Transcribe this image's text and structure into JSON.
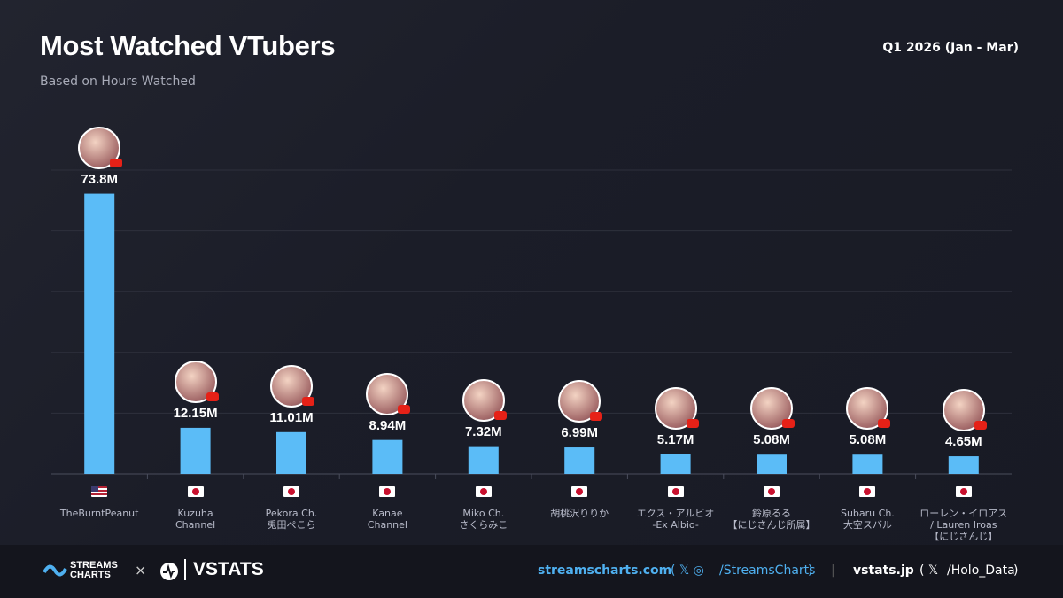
{
  "chart_data": {
    "type": "bar",
    "title": "Most Watched VTubers",
    "subtitle": "Based on Hours Watched",
    "period": "Q1 2026 (Jan - Mar)",
    "categories": [
      "TheBurntPeanut",
      "Kuzuha\nChannel",
      "Pekora Ch.\n兎田ぺこら",
      "Kanae\nChannel",
      "Miko Ch.\nさくらみこ",
      "胡桃沢りりか",
      "エクス・アルビオ\n-Ex Albio-",
      "鈴原るる\n【にじさんじ所属】",
      "Subaru Ch.\n大空スバル",
      "ローレン・イロアス\n/ Lauren Iroas\n【にじさんじ】"
    ],
    "values": [
      73.8,
      12.15,
      11.01,
      8.94,
      7.32,
      6.99,
      5.17,
      5.08,
      5.08,
      4.65
    ],
    "value_labels": [
      "73.8M",
      "12.15M",
      "11.01M",
      "8.94M",
      "7.32M",
      "6.99M",
      "5.17M",
      "5.08M",
      "5.08M",
      "4.65M"
    ],
    "color": "#5bbcf7",
    "ylim": [
      0,
      80
    ],
    "yticks": [
      0,
      16,
      32,
      48,
      64,
      80
    ],
    "grid": true
  },
  "footer": {
    "brand1": "STREAMS\nCHARTS",
    "times": "×",
    "brand2": "VSTATS",
    "site1": "streamscharts.com",
    "handle1": "/StreamsCharts",
    "site2": "vstats.jp",
    "handle2": "/Holo_Data"
  }
}
